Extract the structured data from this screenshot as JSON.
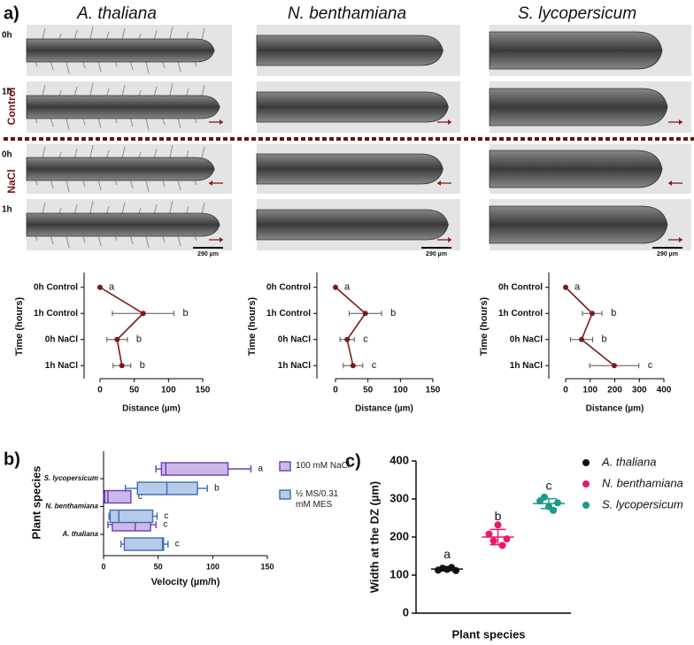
{
  "panel_a": {
    "label": "a)",
    "species": [
      "A. thaliana",
      "N. benthamiana",
      "S. lycopersicum"
    ],
    "rows": [
      "0h",
      "1h",
      "0h",
      "1h"
    ],
    "conditions": [
      "Control",
      "NaCl"
    ],
    "scale_bars": [
      "290 µm",
      "290 µm",
      "290 µm"
    ]
  },
  "chart_data": [
    {
      "type": "line",
      "xlabel": "Distance (µm)",
      "ylabel": "Time (hours)",
      "categories": [
        "0h Control",
        "1h Control",
        "0h NaCl",
        "1h NaCl"
      ],
      "values": [
        0,
        63,
        25,
        32
      ],
      "errors": [
        0,
        45,
        15,
        13
      ],
      "letters": [
        "a",
        "b",
        "b",
        "b"
      ],
      "color": "#7b1a1a",
      "xlim": [
        0,
        150
      ],
      "xticks": [
        0,
        50,
        100,
        150
      ]
    },
    {
      "type": "line",
      "xlabel": "Distance (µm)",
      "ylabel": "Time (hours)",
      "categories": [
        "0h Control",
        "1h Control",
        "0h NaCl",
        "1h NaCl"
      ],
      "values": [
        0,
        46,
        18,
        27
      ],
      "errors": [
        0,
        25,
        11,
        15
      ],
      "letters": [
        "a",
        "b",
        "c",
        "c"
      ],
      "color": "#7b1a1a",
      "xlim": [
        0,
        150
      ],
      "xticks": [
        0,
        50,
        100,
        150
      ]
    },
    {
      "type": "line",
      "xlabel": "Distance (µm)",
      "ylabel": "Time (hours)",
      "categories": [
        "0h Control",
        "1h Control",
        "0h NaCl",
        "1h NaCl"
      ],
      "values": [
        0,
        108,
        65,
        198
      ],
      "errors": [
        0,
        40,
        45,
        100
      ],
      "letters": [
        "a",
        "b",
        "b",
        "c"
      ],
      "color": "#7b1a1a",
      "xlim": [
        0,
        400
      ],
      "xticks": [
        0,
        100,
        200,
        300,
        400
      ]
    },
    {
      "type": "box",
      "panel": "b)",
      "xlabel": "Velocity (µm/h)",
      "ylabel": "Plant species",
      "categories": [
        "S. lycopersicum",
        "N. benthamiana",
        "A. thaliana"
      ],
      "xlim": [
        0,
        150
      ],
      "xticks": [
        0,
        50,
        100,
        150
      ],
      "series": [
        {
          "name": "100 mM NaCl",
          "color": "#6a3fb5",
          "fill": "#cdb8ea",
          "boxes": [
            {
              "min": 48,
              "q1": 53,
              "median": 57,
              "q3": 114,
              "max": 135
            },
            {
              "min": 0,
              "q1": 1,
              "median": 4,
              "q3": 25,
              "max": 25
            },
            {
              "min": 4,
              "q1": 8,
              "median": 29,
              "q3": 43,
              "max": 48
            }
          ],
          "letters": [
            "a",
            "c",
            "c"
          ]
        },
        {
          "name": "½ MS/0.31 mM MES",
          "color": "#3b6db0",
          "fill": "#b7cbe8",
          "boxes": [
            {
              "min": 20,
              "q1": 31,
              "median": 58,
              "q3": 86,
              "max": 95
            },
            {
              "min": 5,
              "q1": 6,
              "median": 14,
              "q3": 45,
              "max": 49
            },
            {
              "min": 16,
              "q1": 19,
              "median": 54,
              "q3": 55,
              "max": 59
            }
          ],
          "letters": [
            "b",
            "c",
            "c"
          ]
        }
      ]
    },
    {
      "type": "scatter",
      "panel": "c)",
      "xlabel": "Plant species",
      "ylabel": "Width at the DZ (µm)",
      "ylim": [
        0,
        400
      ],
      "yticks": [
        0,
        100,
        200,
        300,
        400
      ],
      "series": [
        {
          "name": "A. thaliana",
          "color": "#111111",
          "values": [
            113,
            118,
            115,
            120,
            112
          ],
          "mean": 116,
          "sd": 4,
          "letter": "a"
        },
        {
          "name": "N. benthamiana",
          "color": "#e6196e",
          "values": [
            208,
            190,
            232,
            178,
            195
          ],
          "mean": 200,
          "sd": 20,
          "letter": "b"
        },
        {
          "name": "S. lycopersicum",
          "color": "#1a9a8a",
          "values": [
            295,
            305,
            280,
            270,
            290
          ],
          "mean": 288,
          "sd": 13,
          "letter": "c"
        }
      ]
    }
  ]
}
